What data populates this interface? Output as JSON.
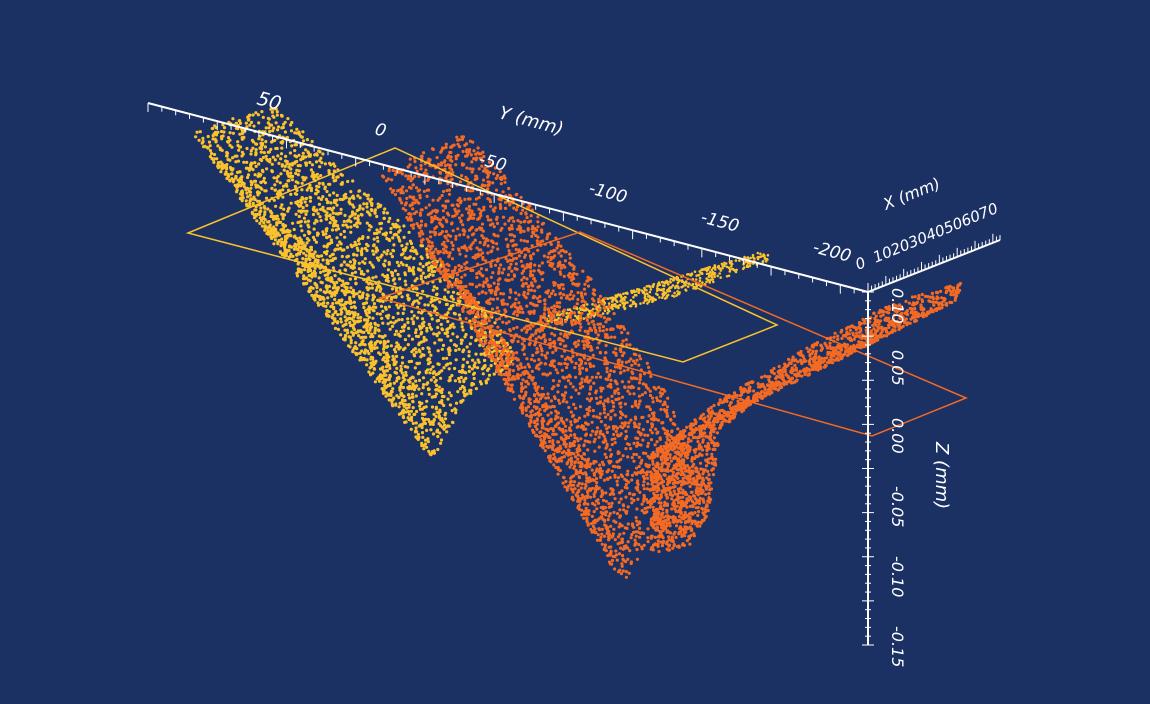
{
  "colors": {
    "background": "#1b3163",
    "axis": "#ffffff",
    "series_yellow": "#fbc22c",
    "series_orange": "#f36a24"
  },
  "chart_data": {
    "type": "scatter",
    "projection": "3d",
    "axes": {
      "x": {
        "label": "X (mm)",
        "ticks": [
          "0",
          "10",
          "20",
          "30",
          "40",
          "50",
          "60",
          "70"
        ],
        "range": [
          0,
          75
        ]
      },
      "y": {
        "label": "Y (mm)",
        "ticks": [
          "50",
          "0",
          "-50",
          "-100",
          "-150",
          "-200"
        ],
        "range": [
          -220,
          75
        ]
      },
      "z": {
        "label": "Z (mm)",
        "ticks": [
          "0.10",
          "0.05",
          "0.00",
          "-0.05",
          "-0.10",
          "-0.15"
        ],
        "range": [
          -0.16,
          0.12
        ]
      }
    },
    "grid": false,
    "legend": "none",
    "series": [
      {
        "color": "#fbc22c",
        "representation": "dense point cloud sheet with thin trailing tail"
      },
      {
        "color": "#f36a24",
        "representation": "dense point cloud sheet with curled lower lobe"
      }
    ],
    "reference_planes": [
      {
        "color": "#fbc22c",
        "shape": "rectangle outline"
      },
      {
        "color": "#f36a24",
        "shape": "rectangle outline"
      }
    ]
  }
}
